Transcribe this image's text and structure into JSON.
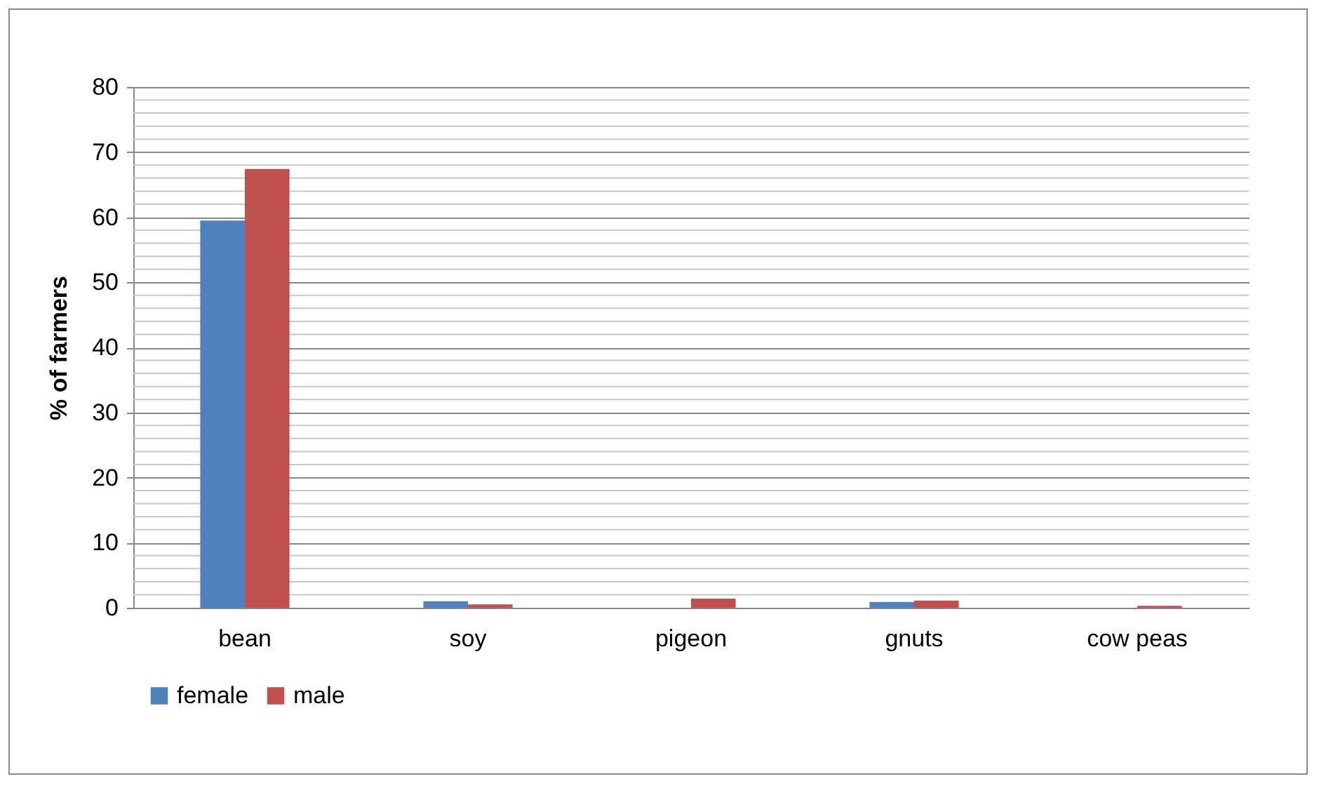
{
  "chart_data": {
    "type": "bar",
    "ylabel": "% of farmers",
    "categories": [
      "bean",
      "soy",
      "pigeon",
      "gnuts",
      "cow peas"
    ],
    "series": [
      {
        "name": "female",
        "color": "#4f81bd",
        "values": [
          59.5,
          1.0,
          null,
          0.9,
          null
        ]
      },
      {
        "name": "male",
        "color": "#c0504d",
        "values": [
          67.4,
          0.5,
          1.4,
          1.1,
          0.3
        ]
      }
    ],
    "ylim": [
      0,
      80
    ],
    "yticks": [
      0,
      10,
      20,
      30,
      40,
      50,
      60,
      70,
      80
    ],
    "grid": "y",
    "legend": "bottom"
  }
}
